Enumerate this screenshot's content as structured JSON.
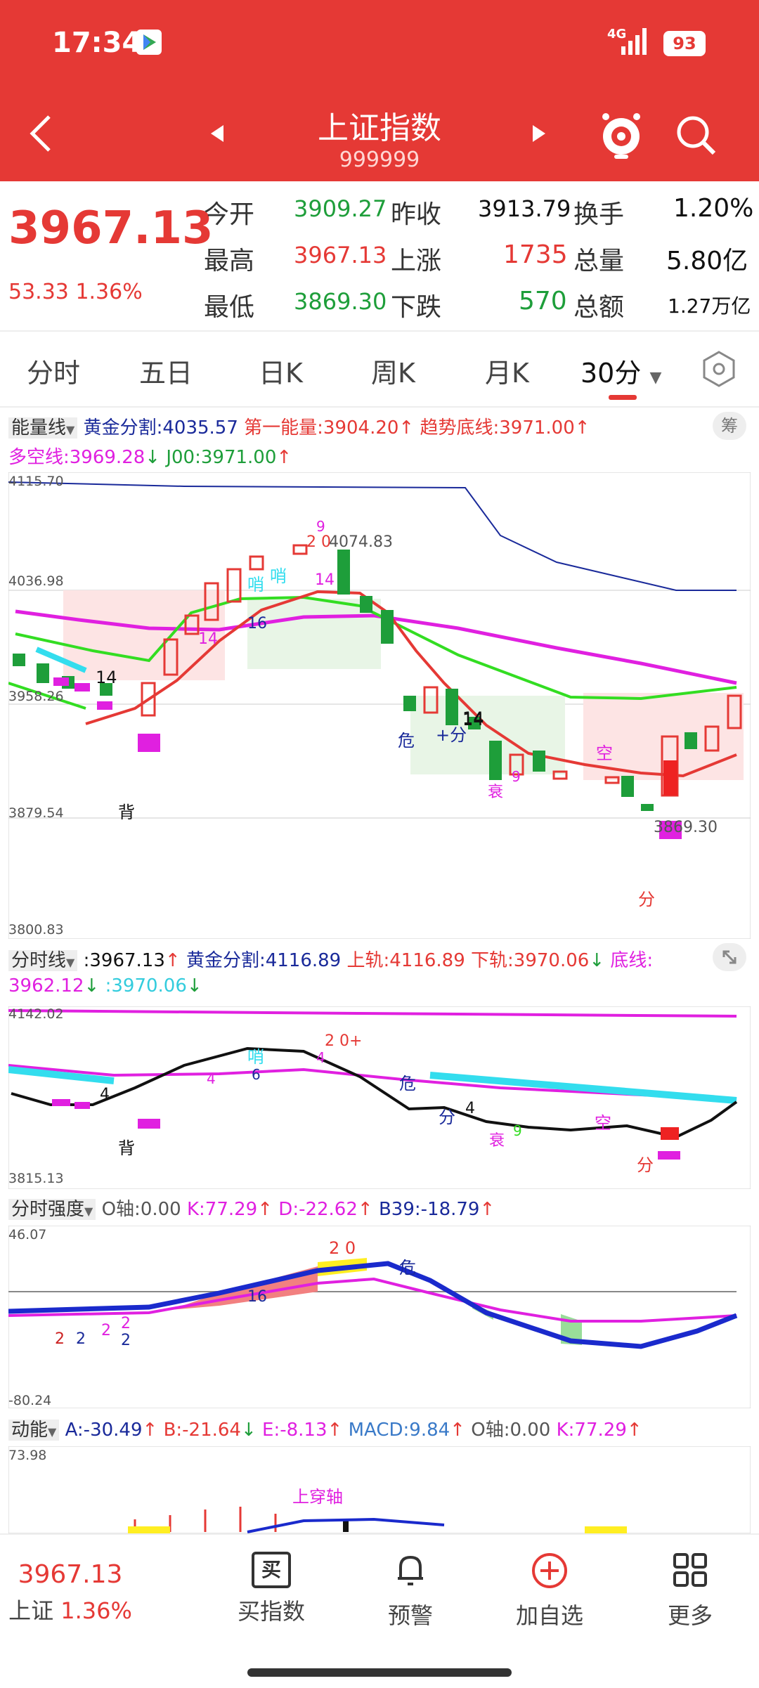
{
  "status": {
    "time": "17:34",
    "network": "4G",
    "battery": "93"
  },
  "header": {
    "title": "上证指数",
    "code": "999999"
  },
  "quote": {
    "price": "3967.13",
    "change": "53.33",
    "change_pct": "1.36%",
    "open_label": "今开",
    "open": "3909.27",
    "prev_label": "昨收",
    "prev": "3913.79",
    "turnover_label": "换手",
    "turnover": "1.20%",
    "high_label": "最高",
    "high": "3967.13",
    "up_label": "上涨",
    "up": "1735",
    "volume_label": "总量",
    "volume": "5.80亿",
    "low_label": "最低",
    "low": "3869.30",
    "down_label": "下跌",
    "down": "570",
    "amount_label": "总额",
    "amount": "1.27万亿"
  },
  "tabs": [
    "分时",
    "五日",
    "日K",
    "周K",
    "月K",
    "30分"
  ],
  "panel1": {
    "name": "能量线",
    "gold": "黄金分割:4035.57",
    "first": "第一能量:3904.20",
    "trend": "趋势底线:3971.00",
    "duokong": "多空线:3969.28",
    "j00": "J00:3971.00",
    "badge": "筹",
    "axis": [
      "4115.70",
      "4036.98",
      "3958.26",
      "3879.54",
      "3800.83"
    ],
    "hi_label": "4074.83",
    "lo_label": "3869.30",
    "marks": [
      "14",
      "14",
      "14",
      "16",
      "14",
      "背",
      "哨",
      "哨",
      "危",
      "+分",
      "14",
      "空",
      "分",
      "衰",
      "9",
      "2 0",
      "9"
    ]
  },
  "panel2": {
    "name": "分时线",
    "value": ":3967.13",
    "gold": "黄金分割:4116.89",
    "upper": "上轨:4116.89",
    "lower": "下轨:3970.06",
    "bottom": "底线:",
    "bottom_val": "3962.12",
    "v2": ":3970.06",
    "axis": [
      "4142.02",
      "3815.13"
    ],
    "marks": [
      "4",
      "背",
      "4",
      "6",
      "哨",
      "4",
      "2 0+",
      "危",
      "分",
      "4",
      "衰",
      "空",
      "分",
      "9"
    ]
  },
  "panel3": {
    "name": "分时强度",
    "o": "O轴:0.00",
    "k": "K:77.29",
    "d": "D:-22.62",
    "b": "B39:-18.79",
    "axis": [
      "46.07",
      "-80.24"
    ],
    "marks": [
      "2",
      "2",
      "2",
      "2",
      "2",
      "16",
      "2 0",
      "危"
    ]
  },
  "panel4": {
    "name": "动能",
    "a": "A:-30.49",
    "b": "B:-21.64",
    "e": "E:-8.13",
    "macd": "MACD:9.84",
    "o": "O轴:0.00",
    "k": "K:77.29",
    "axis": [
      "73.98"
    ],
    "mark": "上穿轴"
  },
  "bottom": {
    "price": "3967.13",
    "name": "上证",
    "pct": "1.36%",
    "items": [
      "买指数",
      "预警",
      "加自选",
      "更多"
    ],
    "buy_icon_char": "买"
  },
  "colors": {
    "red": "#e53935",
    "green": "#1e9e3a",
    "magenta": "#e020e0",
    "lime": "#33dd22",
    "navy": "#1a2a9a",
    "cyan": "#33ddee"
  }
}
